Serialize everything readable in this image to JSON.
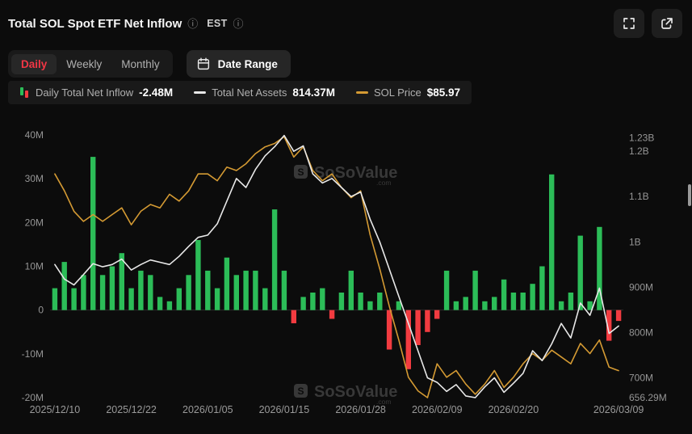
{
  "header": {
    "title": "Total SOL Spot ETF Net Inflow",
    "est_label": "EST"
  },
  "icons": {
    "info": "ⓘ"
  },
  "toolbar": {
    "tabs": [
      {
        "label": "Daily",
        "active": true
      },
      {
        "label": "Weekly",
        "active": false
      },
      {
        "label": "Monthly",
        "active": false
      }
    ],
    "date_range_label": "Date Range"
  },
  "legend": {
    "items": [
      {
        "name": "Daily Total Net Inflow",
        "value": "-2.48M",
        "marker": "green-red-candles"
      },
      {
        "name": "Total Net Assets",
        "value": "814.37M",
        "marker": "white-dash"
      },
      {
        "name": "SOL Price",
        "value": "$85.97",
        "marker": "orange-dash"
      }
    ]
  },
  "watermark": {
    "text": "SoSoValue",
    "suffix": ".com"
  },
  "colors": {
    "background": "#0c0c0c",
    "positive": "#2cbd58",
    "negative": "#f23b40",
    "net_assets": "#e8e8e8",
    "sol_price": "#d49a33",
    "accent_red": "#f23645",
    "watermark": "#3d3d3d",
    "panel": "#1a1a1a"
  },
  "chart_data": {
    "type": "mixed-bar-line",
    "title": "Total SOL Spot ETF Net Inflow",
    "grid": false,
    "legend_position": "top",
    "x_tick_labels": [
      "2025/12/10",
      "2025/12/22",
      "2026/01/05",
      "2026/01/15",
      "2026/01/28",
      "2026/02/09",
      "2026/02/20",
      "2026/03/09"
    ],
    "x_tick_indices": [
      0,
      8,
      16,
      24,
      32,
      40,
      48,
      59
    ],
    "x_dates": [
      "2025/12/10",
      "2025/12/11",
      "2025/12/12",
      "2025/12/15",
      "2025/12/16",
      "2025/12/17",
      "2025/12/18",
      "2025/12/19",
      "2025/12/22",
      "2025/12/23",
      "2025/12/24",
      "2025/12/26",
      "2025/12/29",
      "2025/12/30",
      "2025/12/31",
      "2026/01/02",
      "2026/01/05",
      "2026/01/06",
      "2026/01/07",
      "2026/01/08",
      "2026/01/09",
      "2026/01/12",
      "2026/01/13",
      "2026/01/14",
      "2026/01/15",
      "2026/01/16",
      "2026/01/20",
      "2026/01/21",
      "2026/01/22",
      "2026/01/23",
      "2026/01/26",
      "2026/01/27",
      "2026/01/28",
      "2026/01/29",
      "2026/01/30",
      "2026/02/02",
      "2026/02/03",
      "2026/02/04",
      "2026/02/05",
      "2026/02/06",
      "2026/02/09",
      "2026/02/10",
      "2026/02/11",
      "2026/02/12",
      "2026/02/13",
      "2026/02/17",
      "2026/02/18",
      "2026/02/19",
      "2026/02/20",
      "2026/02/23",
      "2026/02/24",
      "2026/02/25",
      "2026/02/26",
      "2026/02/27",
      "2026/03/02",
      "2026/03/03",
      "2026/03/04",
      "2026/03/05",
      "2026/03/06",
      "2026/03/09"
    ],
    "left_axis": {
      "label": "Daily Net Inflow",
      "unit": "M",
      "ticks": [
        "40M",
        "30M",
        "20M",
        "10M",
        "0",
        "-10M",
        "-20M"
      ],
      "tick_values": [
        40,
        30,
        20,
        10,
        0,
        -10,
        -20
      ],
      "min": -20,
      "max": 40
    },
    "right_axis": {
      "label": "Total Net Assets",
      "unit": "M",
      "ticks": [
        "1.23B",
        "1.2B",
        "1.1B",
        "1B",
        "900M",
        "800M",
        "700M",
        "656.29M"
      ],
      "tick_values": [
        1230,
        1200,
        1100,
        1000,
        900,
        800,
        700,
        656.29
      ],
      "min": 656.29,
      "max": 1236
    },
    "price_axis": {
      "visible": false,
      "unit": "USD",
      "min": 78,
      "max": 155.5
    },
    "series": [
      {
        "name": "Daily Total Net Inflow",
        "type": "bar",
        "axis": "left",
        "unit": "M",
        "current": "-2.48M",
        "values": [
          5,
          11,
          5,
          8,
          35,
          8,
          10,
          13,
          5,
          9,
          8,
          3,
          2,
          5,
          8,
          16,
          9,
          5,
          12,
          8,
          9,
          9,
          5,
          23,
          9,
          -3,
          3,
          4,
          5,
          -2,
          4,
          9,
          4,
          2,
          4,
          -9,
          2,
          -13.5,
          -8,
          -5,
          -2,
          9,
          2,
          3,
          9,
          2,
          3,
          7,
          4,
          4,
          6,
          10,
          31,
          2,
          4,
          17,
          2,
          19,
          -7,
          -2.48
        ]
      },
      {
        "name": "Total Net Assets",
        "type": "line",
        "axis": "right",
        "unit": "M",
        "current": "814.37M",
        "values": [
          950,
          918,
          905,
          928,
          952,
          945,
          950,
          962,
          938,
          950,
          960,
          955,
          950,
          968,
          990,
          1010,
          1015,
          1040,
          1090,
          1140,
          1120,
          1160,
          1190,
          1210,
          1235,
          1200,
          1212,
          1150,
          1130,
          1140,
          1120,
          1100,
          1110,
          1050,
          1000,
          940,
          880,
          820,
          760,
          700,
          690,
          670,
          685,
          660,
          656.29,
          680,
          700,
          668,
          688,
          710,
          760,
          738,
          775,
          820,
          788,
          865,
          838,
          898,
          798,
          814.37
        ]
      },
      {
        "name": "SOL Price",
        "type": "line",
        "axis": "price",
        "unit": "USD",
        "current": "$85.97",
        "values": [
          144,
          139,
          133,
          130,
          132,
          130,
          132,
          134,
          129,
          133,
          135,
          134,
          138,
          136,
          139,
          144,
          144,
          142,
          146,
          145,
          147,
          150,
          152,
          153,
          155,
          149,
          152,
          145,
          142,
          144,
          140,
          137,
          139,
          126,
          116,
          105,
          95,
          84,
          80,
          78,
          88,
          84,
          86,
          82,
          79,
          82,
          86,
          81,
          84,
          88,
          91,
          89,
          92,
          90,
          88,
          94,
          91,
          95,
          87,
          85.97
        ]
      }
    ]
  }
}
